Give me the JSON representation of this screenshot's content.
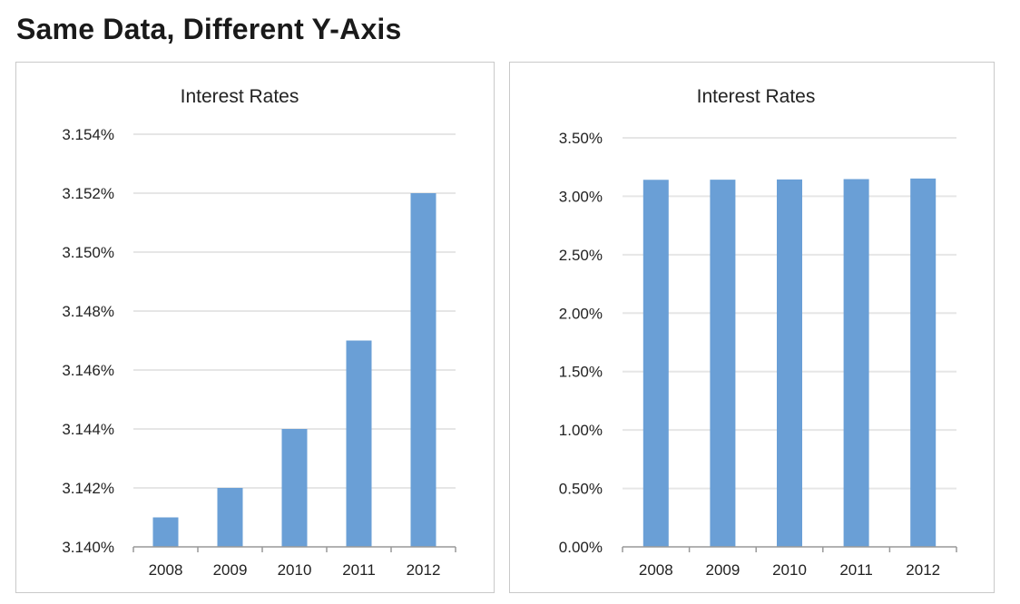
{
  "page": {
    "title": "Same Data, Different Y-Axis"
  },
  "colors": {
    "bar": "#6a9fd6",
    "gridline": "#e6e6e6",
    "axis": "#999999"
  },
  "chart_data": [
    {
      "type": "bar",
      "title": "Interest Rates",
      "categories": [
        "2008",
        "2009",
        "2010",
        "2011",
        "2012"
      ],
      "values": [
        3.141,
        3.142,
        3.144,
        3.147,
        3.152
      ],
      "unit": "%",
      "ylim": [
        3.14,
        3.154
      ],
      "yticks": [
        3.14,
        3.142,
        3.144,
        3.146,
        3.148,
        3.15,
        3.152,
        3.154
      ],
      "ytick_labels": [
        "3.140%",
        "3.142%",
        "3.144%",
        "3.146%",
        "3.148%",
        "3.150%",
        "3.152%",
        "3.154%"
      ],
      "xlabel": "",
      "ylabel": "",
      "grid": true,
      "legend": "none"
    },
    {
      "type": "bar",
      "title": "Interest Rates",
      "categories": [
        "2008",
        "2009",
        "2010",
        "2011",
        "2012"
      ],
      "values": [
        3.141,
        3.142,
        3.144,
        3.147,
        3.152
      ],
      "unit": "%",
      "ylim": [
        0,
        3.5
      ],
      "yticks": [
        0,
        0.5,
        1.0,
        1.5,
        2.0,
        2.5,
        3.0,
        3.5
      ],
      "ytick_labels": [
        "0.00%",
        "0.50%",
        "1.00%",
        "1.50%",
        "2.00%",
        "2.50%",
        "3.00%",
        "3.50%"
      ],
      "xlabel": "",
      "ylabel": "",
      "grid": true,
      "legend": "none"
    }
  ]
}
